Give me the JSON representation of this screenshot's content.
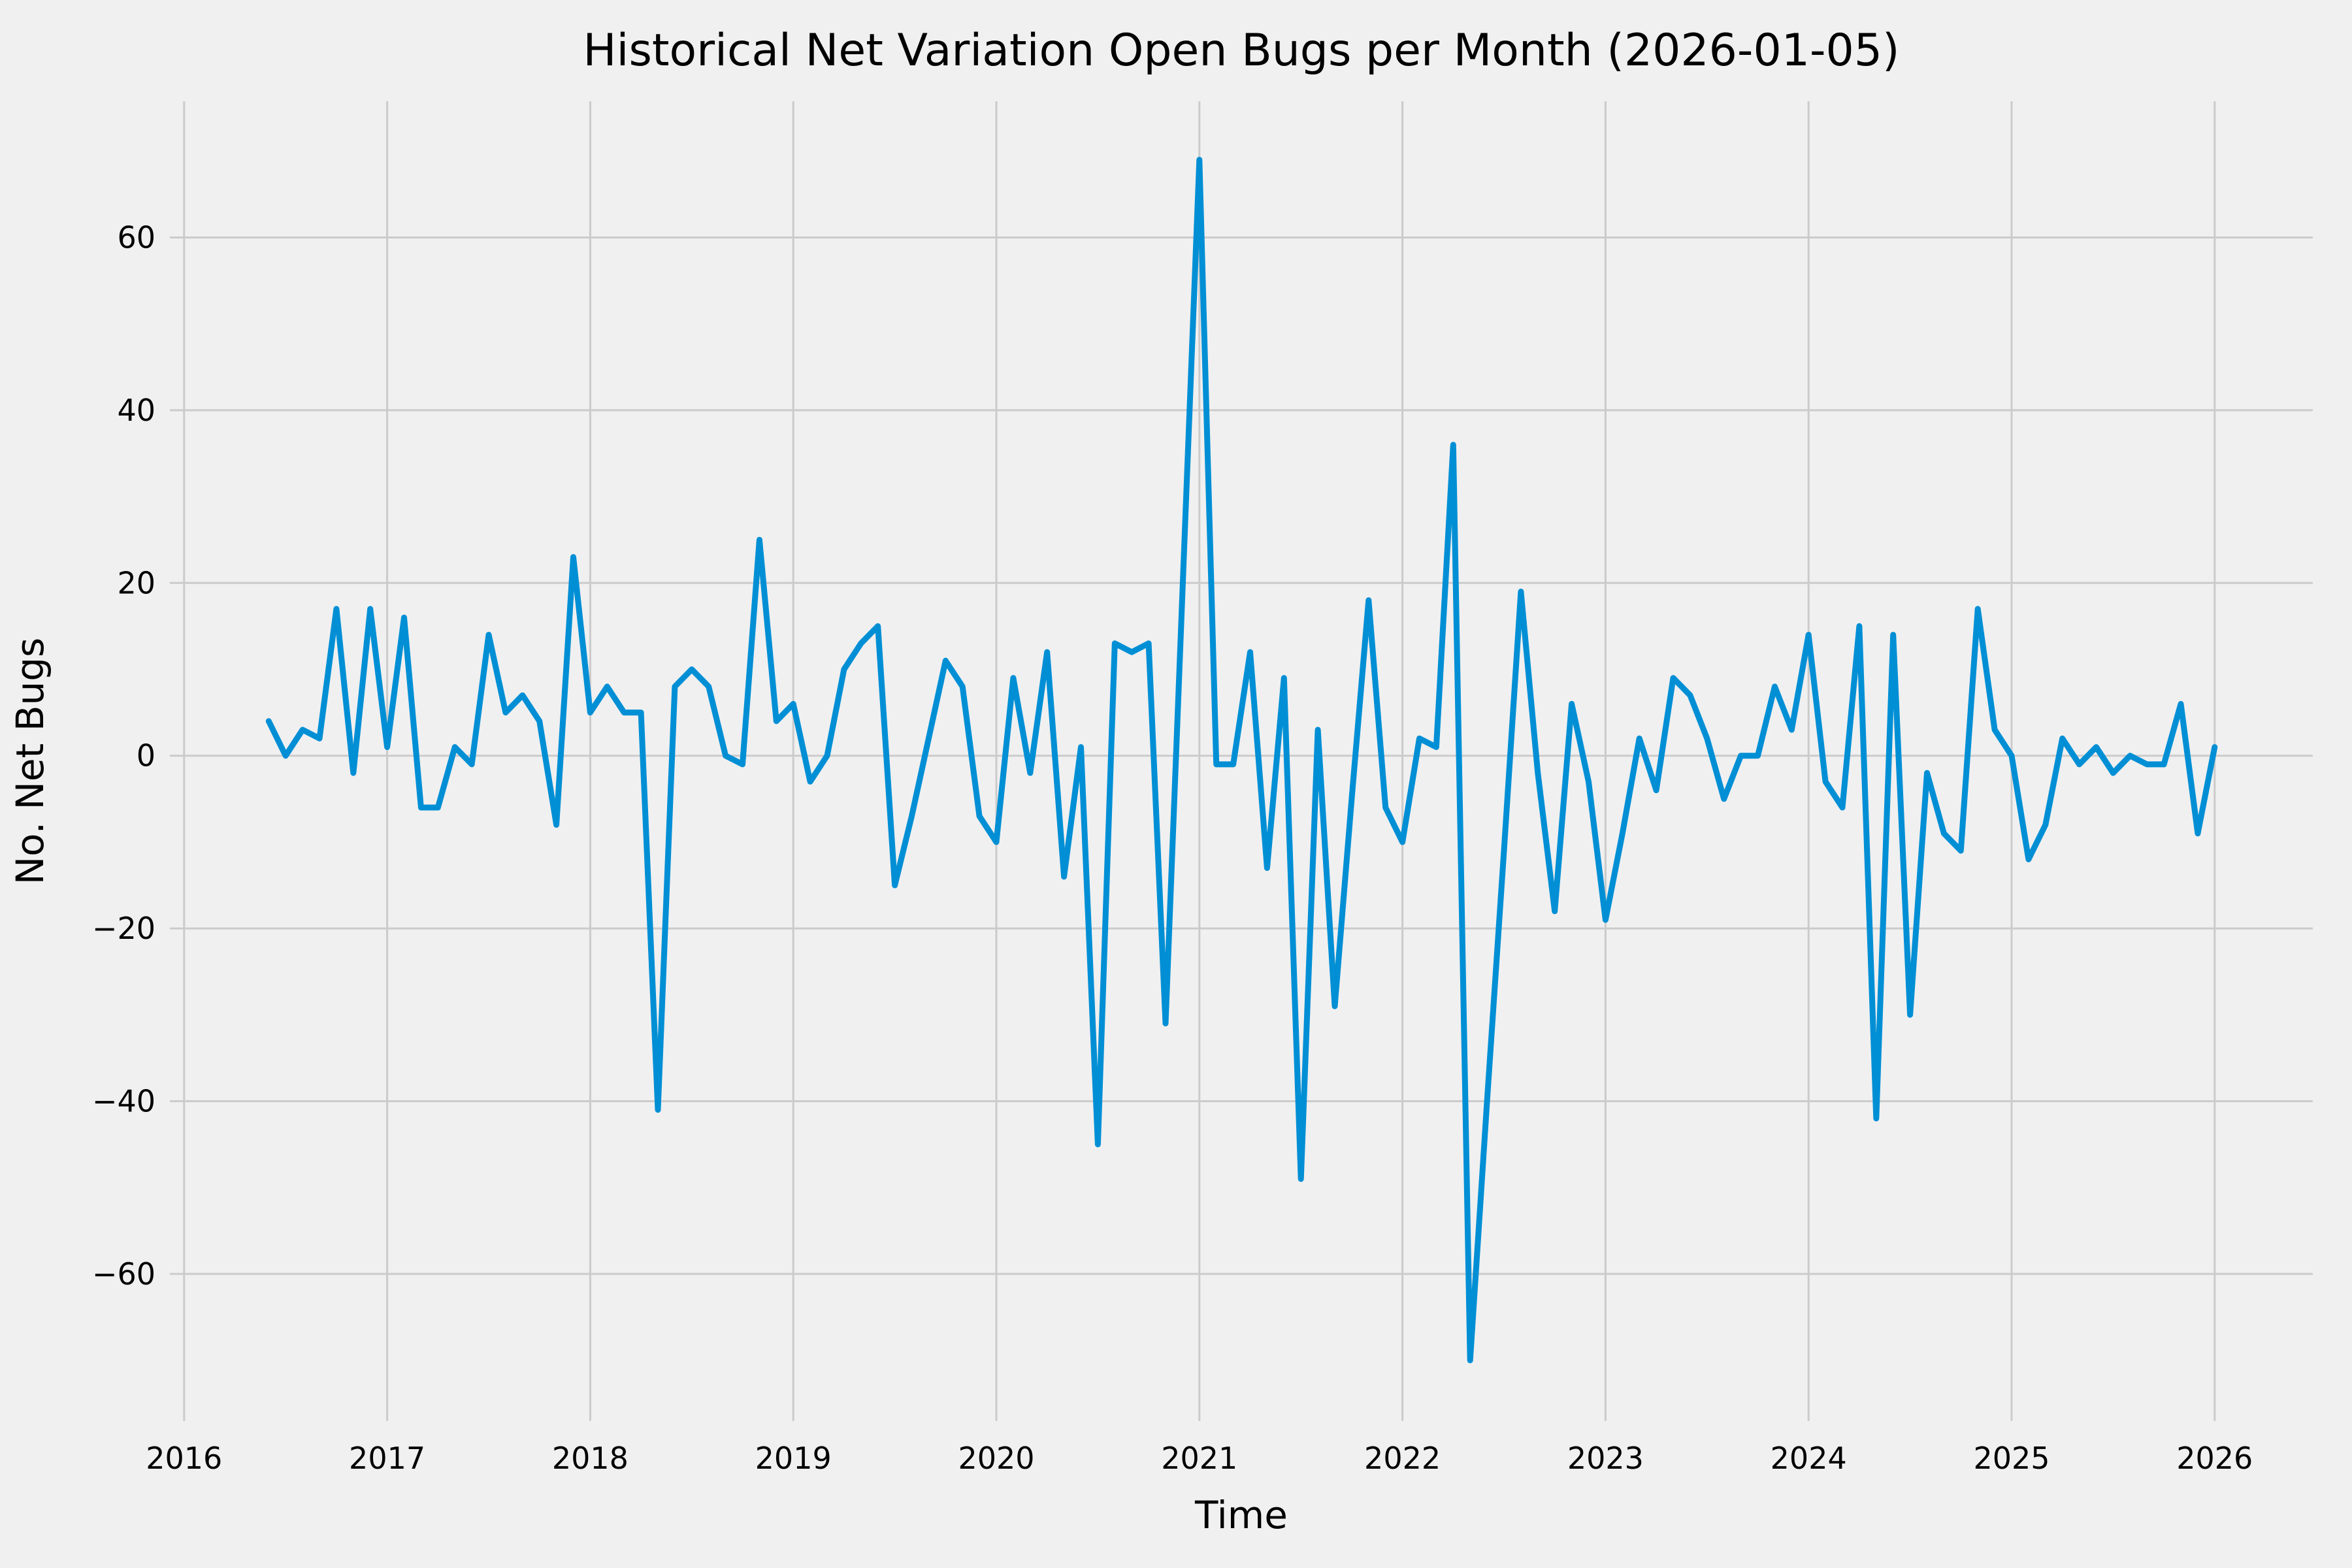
{
  "title": "Historical Net Variation Open Bugs per Month (2026-01-05)",
  "colors": {
    "background": "#f0f0f0",
    "line": "#008fd5",
    "grid": "#cbcbcb",
    "text": "#000000"
  },
  "chart_data": {
    "type": "line",
    "title": "Historical Net Variation Open Bugs per Month (2026-01-05)",
    "xlabel": "Time",
    "ylabel": "No. Net Bugs",
    "legend": "none",
    "grid": true,
    "x_tick_labels": [
      2016,
      2017,
      2018,
      2019,
      2020,
      2021,
      2022,
      2023,
      2024,
      2025,
      2026
    ],
    "y_tick_labels": [
      -60,
      -40,
      -20,
      0,
      20,
      40,
      60
    ],
    "ylim": [
      -70,
      69
    ],
    "x": [
      "2016-06",
      "2016-07",
      "2016-08",
      "2016-09",
      "2016-10",
      "2016-11",
      "2016-12",
      "2017-01",
      "2017-02",
      "2017-03",
      "2017-04",
      "2017-05",
      "2017-06",
      "2017-07",
      "2017-08",
      "2017-09",
      "2017-10",
      "2017-11",
      "2017-12",
      "2018-01",
      "2018-02",
      "2018-03",
      "2018-04",
      "2018-05",
      "2018-06",
      "2018-07",
      "2018-08",
      "2018-09",
      "2018-10",
      "2018-11",
      "2018-12",
      "2019-01",
      "2019-02",
      "2019-03",
      "2019-04",
      "2019-05",
      "2019-06",
      "2019-07",
      "2019-08",
      "2019-09",
      "2019-10",
      "2019-11",
      "2019-12",
      "2020-01",
      "2020-02",
      "2020-03",
      "2020-04",
      "2020-05",
      "2020-06",
      "2020-07",
      "2020-08",
      "2020-09",
      "2020-10",
      "2020-11",
      "2020-12",
      "2021-01",
      "2021-02",
      "2021-03",
      "2021-04",
      "2021-05",
      "2021-06",
      "2021-07",
      "2021-08",
      "2021-09",
      "2021-10",
      "2021-11",
      "2021-12",
      "2022-01",
      "2022-02",
      "2022-03",
      "2022-04",
      "2022-05",
      "2022-06",
      "2022-07",
      "2022-08",
      "2022-09",
      "2022-10",
      "2022-11",
      "2022-12",
      "2023-01",
      "2023-02",
      "2023-03",
      "2023-04",
      "2023-05",
      "2023-06",
      "2023-07",
      "2023-08",
      "2023-09",
      "2023-10",
      "2023-11",
      "2023-12",
      "2024-01",
      "2024-02",
      "2024-03",
      "2024-04",
      "2024-05",
      "2024-06",
      "2024-07",
      "2024-08",
      "2024-09",
      "2024-10",
      "2024-11",
      "2024-12",
      "2025-01",
      "2025-02",
      "2025-03",
      "2025-04",
      "2025-05",
      "2025-06",
      "2025-07",
      "2025-08",
      "2025-09",
      "2025-10",
      "2025-11",
      "2025-12",
      "2026-01"
    ],
    "values": [
      4,
      0,
      3,
      2,
      17,
      -2,
      17,
      1,
      16,
      -6,
      -6,
      1,
      -1,
      14,
      5,
      7,
      4,
      -8,
      23,
      5,
      8,
      5,
      5,
      -41,
      8,
      10,
      8,
      0,
      -1,
      25,
      4,
      6,
      -3,
      0,
      10,
      13,
      15,
      -15,
      -7,
      2,
      11,
      8,
      -7,
      -10,
      9,
      -2,
      12,
      -14,
      1,
      -45,
      13,
      12,
      13,
      -31,
      19,
      69,
      -1,
      -1,
      12,
      -13,
      9,
      -49,
      3,
      -29,
      -5,
      18,
      -6,
      -10,
      2,
      1,
      36,
      -70,
      -40,
      -11,
      19,
      -2,
      -18,
      6,
      -3,
      -19,
      -9,
      2,
      -4,
      9,
      7,
      2,
      -5,
      0,
      0,
      8,
      3,
      14,
      -3,
      -6,
      15,
      -42,
      14,
      -30,
      -2,
      -9,
      -11,
      17,
      3,
      0,
      -12,
      -8,
      2,
      -1,
      1,
      -2,
      0,
      -1,
      -1,
      6,
      -9,
      1
    ]
  }
}
